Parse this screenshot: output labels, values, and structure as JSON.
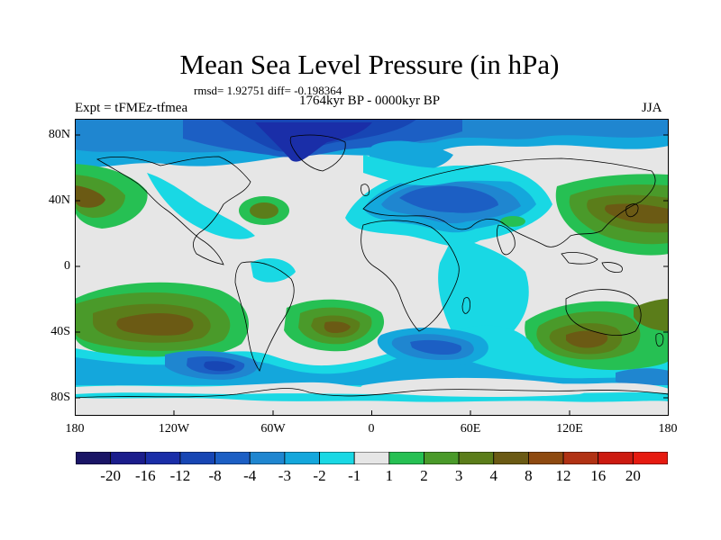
{
  "title": "Mean Sea Level Pressure (in hPa)",
  "stats": "rmsd= 1.92751 diff= -0.198364",
  "period": "1764kyr BP - 0000kyr BP",
  "experiment": "Expt = tFMEz-tfmea",
  "season": "JJA",
  "y_axis_labels": [
    "80N",
    "40N",
    "0",
    "40S",
    "80S"
  ],
  "x_axis_labels": [
    "180",
    "120W",
    "60W",
    "0",
    "60E",
    "120E",
    "180"
  ],
  "colorbar": {
    "labels": [
      "-20",
      "-16",
      "-12",
      "-8",
      "-4",
      "-3",
      "-2",
      "-1",
      "1",
      "2",
      "3",
      "4",
      "8",
      "12",
      "16",
      "20"
    ],
    "colors": [
      "#1a1566",
      "#1b1d8c",
      "#1a2ea8",
      "#1746b4",
      "#1c5fc4",
      "#1f86d0",
      "#14a7dc",
      "#19d8e4",
      "#e6e6e6",
      "#26c053",
      "#4a9a2a",
      "#5b7d1a",
      "#6b5a14",
      "#8e4a10",
      "#b13214",
      "#cc1a10",
      "#e61a10"
    ]
  },
  "map_data": {
    "variable": "Mean Sea Level Pressure difference",
    "units": "hPa",
    "lon_range": [
      -180,
      180
    ],
    "lat_range": [
      -90,
      90
    ]
  }
}
